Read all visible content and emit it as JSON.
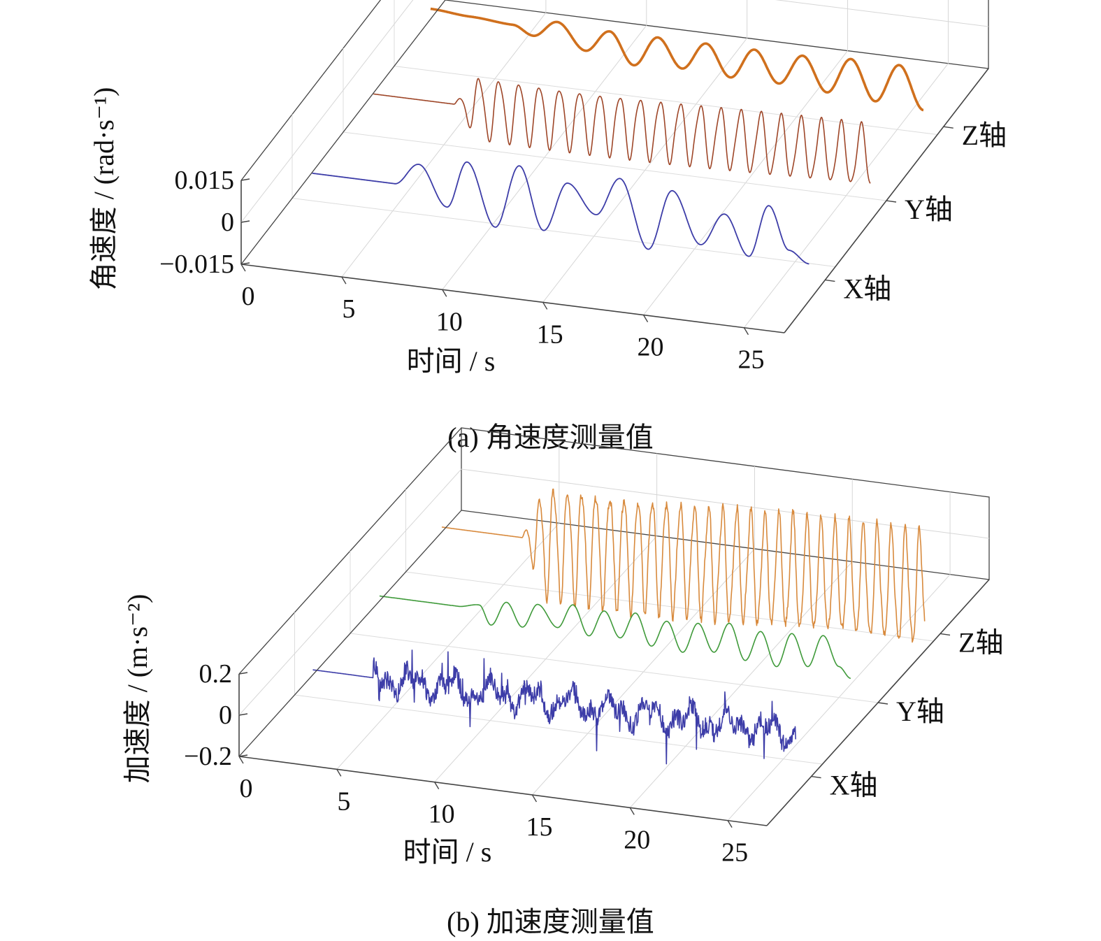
{
  "chart_data": [
    {
      "type": "line",
      "projection": "3d-waterfall",
      "caption": "(a) 角速度测量值",
      "title": "角速度测量值",
      "xlabel": "时间 / s",
      "ylabel": "角速度 / (rad·s⁻¹)",
      "xlim": [
        0,
        27
      ],
      "ylim": [
        -0.015,
        0.015
      ],
      "x_ticks": [
        "0",
        "5",
        "10",
        "15",
        "20",
        "25"
      ],
      "y_ticks": [
        "0.015",
        "0",
        "−0.015"
      ],
      "depth_labels": [
        "X轴",
        "Y轴",
        "Z轴"
      ],
      "series": [
        {
          "name": "X轴",
          "color": "#3d3da8",
          "stroke": 1.8,
          "x": [
            1.5,
            5.6,
            6.8,
            8.2,
            9.2,
            10.6,
            11.8,
            13.0,
            14.2,
            15.6,
            16.8,
            18.2,
            19.4,
            20.8,
            22.0,
            23.2,
            24.2,
            25.2,
            26.2
          ],
          "values": [
            0.0,
            0.0,
            0.008,
            -0.006,
            0.011,
            -0.011,
            0.012,
            -0.01,
            0.008,
            -0.002,
            0.012,
            -0.012,
            0.01,
            -0.008,
            0.004,
            -0.01,
            0.009,
            -0.006,
            -0.01
          ]
        },
        {
          "name": "Y轴",
          "color": "#9e4628",
          "stroke": 1.6,
          "osc_start": 5.5,
          "osc_end": 26.2,
          "osc_period": 1.0,
          "amplitude": 0.012,
          "baseline": 0.0
        },
        {
          "name": "Z轴",
          "color": "#d0701d",
          "stroke": 3.6,
          "x": [
            1.5,
            3.5,
            5.6,
            6.6,
            7.8,
            9.2,
            10.4,
            11.6,
            12.8,
            14.0,
            15.2,
            16.4,
            17.6,
            18.8,
            20.0,
            21.2,
            22.4,
            23.6,
            24.8,
            26.0
          ],
          "values": [
            0.004,
            0.003,
            0.002,
            -0.001,
            0.005,
            -0.004,
            0.004,
            -0.007,
            0.004,
            -0.006,
            0.004,
            -0.007,
            0.004,
            -0.007,
            0.004,
            -0.008,
            0.005,
            -0.009,
            0.005,
            -0.01
          ]
        }
      ]
    },
    {
      "type": "line",
      "projection": "3d-waterfall",
      "caption": "(b) 加速度测量值",
      "title": "加速度测量值",
      "xlabel": "时间 / s",
      "ylabel": "加速度 / (m·s⁻²)",
      "xlim": [
        0,
        27
      ],
      "ylim": [
        -0.2,
        0.2
      ],
      "x_ticks": [
        "0",
        "5",
        "10",
        "15",
        "20",
        "25"
      ],
      "y_ticks": [
        "0.2",
        "0",
        "−0.2"
      ],
      "depth_labels": [
        "X轴",
        "Y轴",
        "Z轴"
      ],
      "series": [
        {
          "name": "X轴",
          "color": "#3d3da8",
          "stroke": 1.6,
          "quiet_until": 4.6,
          "quiet_value": 0.0,
          "end": 26.2,
          "amplitude": 0.13,
          "noise": "high"
        },
        {
          "name": "Y轴",
          "color": "#3f9a3a",
          "stroke": 1.6,
          "x": [
            1.5,
            5.5,
            6.6,
            7.2,
            8.0,
            8.8,
            9.6,
            10.6,
            11.4,
            12.2,
            13.0,
            13.8,
            14.6,
            15.4,
            16.2,
            17.0,
            17.8,
            18.6,
            19.4,
            20.2,
            21.0,
            21.8,
            22.6,
            23.4,
            24.2,
            25.0,
            25.6
          ],
          "values": [
            0.0,
            0.0,
            0.02,
            -0.07,
            0.05,
            -0.06,
            0.06,
            -0.04,
            0.08,
            -0.06,
            0.07,
            -0.05,
            0.08,
            -0.07,
            0.06,
            -0.08,
            0.07,
            -0.06,
            0.09,
            -0.08,
            0.07,
            -0.09,
            0.08,
            -0.07,
            0.09,
            -0.05,
            -0.1
          ]
        },
        {
          "name": "Z轴",
          "color": "#d88a3d",
          "stroke": 1.6,
          "quiet_until": 5.6,
          "quiet_value": 0.0,
          "osc_start": 5.6,
          "end": 26.2,
          "osc_period": 0.72,
          "amplitude": 0.3
        }
      ]
    }
  ]
}
